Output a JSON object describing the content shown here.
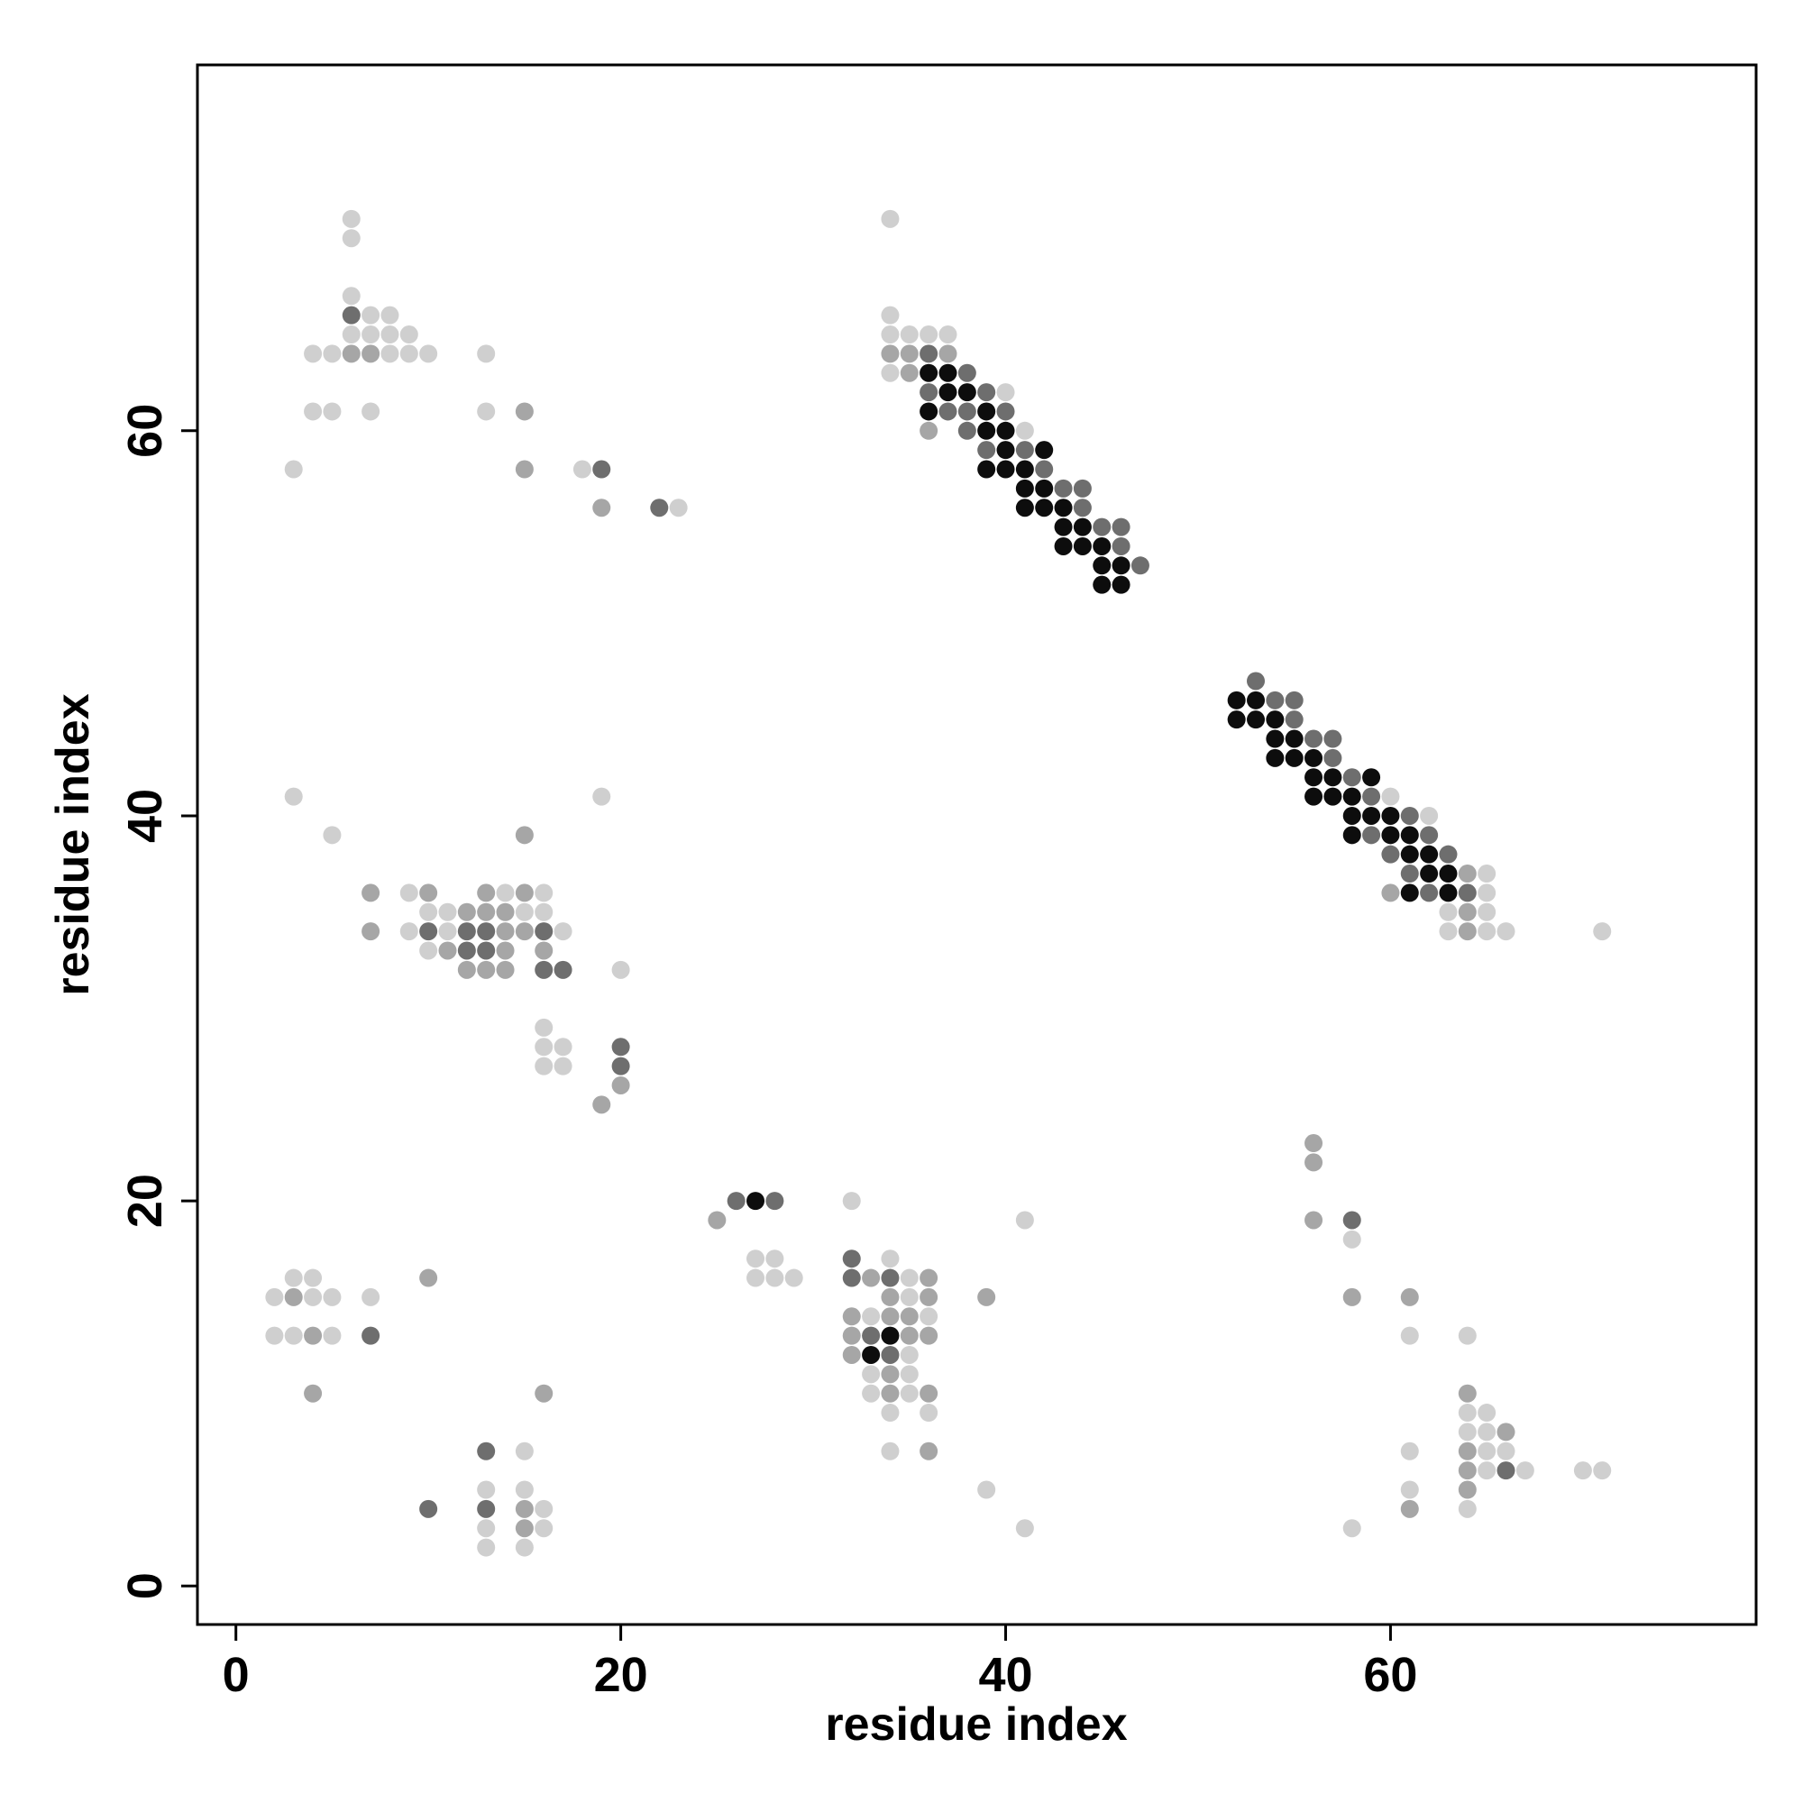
{
  "chart_data": {
    "type": "scatter",
    "xlabel": "residue index",
    "ylabel": "residue index",
    "xlim": [
      -2,
      79
    ],
    "ylim": [
      -2,
      79
    ],
    "xticks": [
      0,
      20,
      40,
      60
    ],
    "yticks": [
      0,
      20,
      40,
      60
    ],
    "series": [
      {
        "color": "#cfcfcf",
        "x": [
          6,
          6,
          6,
          7,
          8,
          6,
          7,
          8,
          9,
          4,
          5,
          8,
          9,
          10,
          13,
          4,
          5,
          7,
          13,
          3,
          18,
          23,
          34,
          34,
          34,
          35,
          36,
          37,
          34,
          40,
          41,
          60,
          62,
          65,
          65,
          63,
          65,
          63,
          65,
          66,
          71,
          3,
          19,
          5,
          9,
          14,
          16,
          11,
          10,
          15,
          16,
          9,
          11,
          17,
          10,
          20,
          16,
          16,
          17,
          16,
          17,
          2,
          4,
          5,
          7,
          3,
          4,
          2,
          3,
          5,
          15,
          13,
          15,
          16,
          13,
          16,
          13,
          15,
          27,
          28,
          27,
          28,
          29,
          32,
          41,
          34,
          35,
          35,
          33,
          36,
          35,
          33,
          35,
          33,
          35,
          34,
          36,
          34,
          39,
          41,
          58,
          61,
          64,
          64,
          65,
          64,
          65,
          65,
          66,
          61,
          65,
          67,
          70,
          71,
          61,
          64,
          58
        ],
        "y": [
          71,
          70,
          67,
          66,
          66,
          65,
          65,
          65,
          65,
          64,
          64,
          64,
          64,
          64,
          64,
          61,
          61,
          61,
          61,
          58,
          58,
          56,
          71,
          66,
          65,
          65,
          65,
          65,
          63,
          62,
          60,
          41,
          40,
          37,
          36,
          35,
          35,
          34,
          34,
          34,
          34,
          41,
          41,
          39,
          36,
          36,
          36,
          35,
          35,
          35,
          35,
          34,
          34,
          34,
          33,
          32,
          29,
          28,
          28,
          27,
          27,
          15,
          15,
          15,
          15,
          16,
          16,
          13,
          13,
          13,
          7,
          5,
          5,
          4,
          3,
          3,
          2,
          2,
          17,
          17,
          16,
          16,
          16,
          20,
          19,
          17,
          16,
          15,
          14,
          14,
          12,
          11,
          11,
          10,
          10,
          9,
          9,
          7,
          5,
          3,
          18,
          13,
          13,
          9,
          9,
          8,
          8,
          7,
          7,
          7,
          6,
          6,
          6,
          6,
          5,
          4,
          3
        ]
      },
      {
        "color": "#a6a6a6",
        "x": [
          6,
          7,
          15,
          15,
          19,
          34,
          35,
          37,
          35,
          36,
          64,
          60,
          64,
          64,
          15,
          7,
          10,
          13,
          15,
          12,
          13,
          14,
          7,
          14,
          15,
          11,
          14,
          16,
          12,
          13,
          14,
          20,
          19,
          3,
          4,
          4,
          10,
          16,
          15,
          15,
          25,
          33,
          36,
          34,
          36,
          39,
          32,
          34,
          35,
          32,
          35,
          36,
          32,
          34,
          34,
          36,
          36,
          56,
          56,
          56,
          58,
          61,
          64,
          66,
          64,
          64,
          64,
          61
        ],
        "y": [
          64,
          64,
          61,
          58,
          56,
          64,
          64,
          64,
          63,
          60,
          37,
          36,
          35,
          34,
          39,
          36,
          36,
          36,
          36,
          35,
          35,
          35,
          34,
          34,
          34,
          33,
          33,
          33,
          32,
          32,
          32,
          26,
          25,
          15,
          13,
          10,
          16,
          10,
          4,
          3,
          19,
          16,
          16,
          15,
          15,
          15,
          14,
          14,
          14,
          13,
          13,
          13,
          12,
          11,
          10,
          10,
          7,
          23,
          22,
          19,
          15,
          15,
          10,
          8,
          7,
          6,
          5,
          4
        ]
      },
      {
        "color": "#6e6e6e",
        "x": [
          6,
          19,
          22,
          36,
          38,
          36,
          39,
          37,
          38,
          40,
          38,
          39,
          41,
          42,
          43,
          44,
          44,
          45,
          46,
          46,
          47,
          53,
          54,
          55,
          55,
          56,
          57,
          57,
          58,
          59,
          61,
          59,
          62,
          60,
          63,
          61,
          62,
          64,
          10,
          12,
          13,
          16,
          12,
          13,
          16,
          17,
          20,
          20,
          7,
          13,
          10,
          13,
          26,
          28,
          32,
          32,
          34,
          33,
          34,
          58,
          66
        ],
        "y": [
          66,
          58,
          56,
          64,
          63,
          62,
          62,
          61,
          61,
          61,
          60,
          59,
          59,
          58,
          57,
          57,
          56,
          55,
          55,
          54,
          53,
          47,
          46,
          46,
          45,
          44,
          44,
          43,
          42,
          41,
          40,
          39,
          39,
          38,
          38,
          37,
          36,
          36,
          34,
          34,
          34,
          34,
          33,
          33,
          32,
          32,
          28,
          27,
          13,
          7,
          4,
          4,
          20,
          20,
          17,
          16,
          16,
          13,
          12,
          19,
          6
        ]
      },
      {
        "color": "#0d0d0d",
        "x": [
          36,
          37,
          37,
          38,
          36,
          39,
          39,
          40,
          40,
          42,
          39,
          40,
          41,
          41,
          42,
          41,
          42,
          43,
          43,
          44,
          43,
          44,
          45,
          45,
          46,
          45,
          46,
          52,
          53,
          52,
          53,
          54,
          54,
          55,
          54,
          55,
          56,
          56,
          57,
          59,
          56,
          57,
          58,
          58,
          59,
          60,
          58,
          60,
          61,
          61,
          62,
          62,
          63,
          61,
          63,
          27,
          34,
          33
        ],
        "y": [
          63,
          63,
          62,
          62,
          61,
          61,
          60,
          60,
          59,
          59,
          58,
          58,
          58,
          57,
          57,
          56,
          56,
          56,
          55,
          55,
          54,
          54,
          54,
          53,
          53,
          52,
          52,
          46,
          46,
          45,
          45,
          45,
          44,
          44,
          43,
          43,
          43,
          42,
          42,
          42,
          41,
          41,
          41,
          40,
          40,
          40,
          39,
          39,
          39,
          38,
          38,
          37,
          37,
          36,
          36,
          20,
          13,
          12
        ]
      }
    ]
  }
}
